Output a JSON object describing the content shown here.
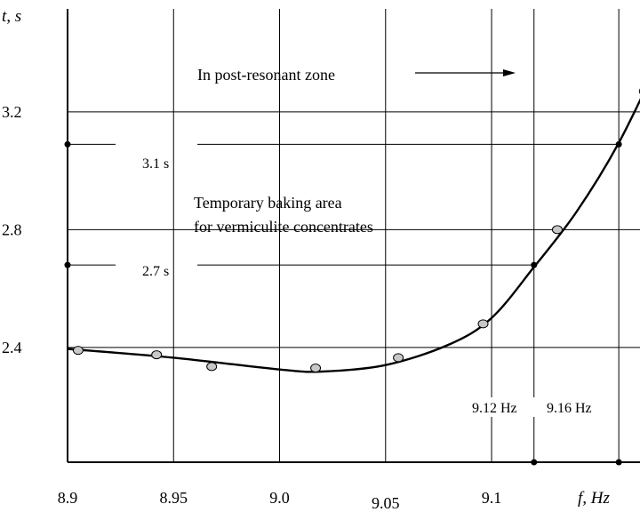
{
  "chart_data": {
    "type": "scatter",
    "xlabel": "f, Hz",
    "ylabel": "t, s",
    "xlim": [
      8.9,
      9.17
    ],
    "ylim": [
      2.01,
      3.55
    ],
    "x_ticks": [
      "8.9",
      "8.95",
      "9.0",
      "9.05",
      "9.1"
    ],
    "y_ticks": [
      "2.4",
      "2.8",
      "3.2"
    ],
    "grid": true,
    "series": [
      {
        "name": "",
        "kind": "points",
        "x": [
          8.905,
          8.942,
          8.968,
          9.017,
          9.056,
          9.096,
          9.131,
          9.172
        ],
        "y": [
          2.39,
          2.375,
          2.335,
          2.33,
          2.365,
          2.48,
          2.8,
          3.27
        ]
      },
      {
        "name": "",
        "kind": "fitted-curve",
        "x": [
          8.9,
          8.95,
          9.0,
          9.02,
          9.05,
          9.08,
          9.1,
          9.12,
          9.14,
          9.16,
          9.18
        ],
        "y": [
          2.395,
          2.365,
          2.325,
          2.318,
          2.34,
          2.41,
          2.5,
          2.673,
          2.86,
          3.095,
          3.39
        ]
      }
    ],
    "markers": [
      {
        "label": "3.1 s",
        "y": 3.09,
        "x": 9.16
      },
      {
        "label": "2.7 s",
        "y": 2.68,
        "x": 9.12
      }
    ],
    "frequency_markers": [
      {
        "label": "9.12 Hz",
        "x": 9.12
      },
      {
        "label": "9.16 Hz",
        "x": 9.16
      }
    ],
    "annotations": [
      "In post-resonant zone",
      "Temporary baking area",
      "for vermiculite concentrates"
    ]
  }
}
